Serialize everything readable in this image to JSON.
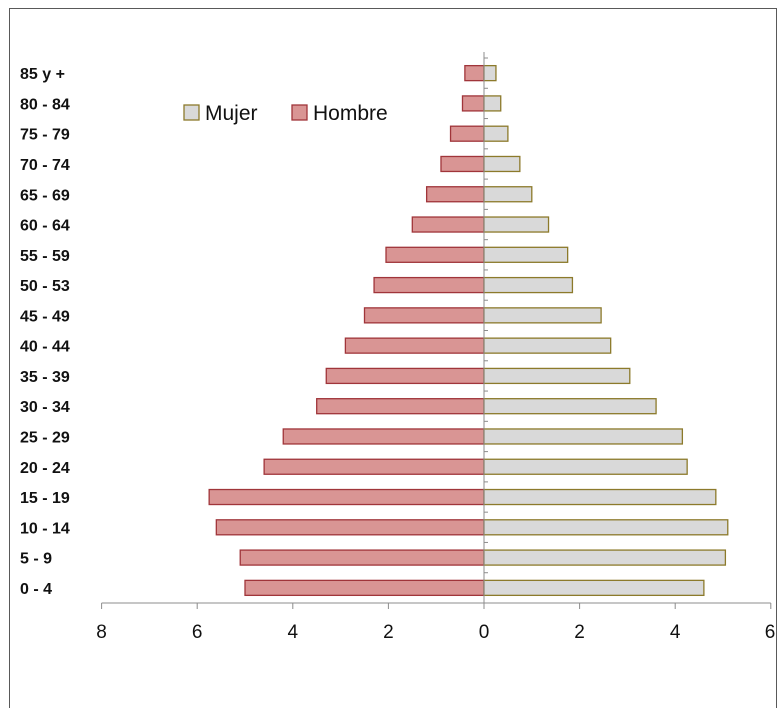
{
  "chart_data": {
    "type": "bar",
    "orientation": "horizontal",
    "subtype": "population-pyramid",
    "categories": [
      "0 - 4",
      "5 - 9",
      "10 - 14",
      "15 - 19",
      "20 - 24",
      "25 - 29",
      "30 - 34",
      "35 - 39",
      "40 - 44",
      "45 - 49",
      "50 - 53",
      "55 - 59",
      "60 - 64",
      "65 - 69",
      "70 - 74",
      "75 - 79",
      "80 - 84",
      "85 y  +"
    ],
    "series": [
      {
        "name": "Mujer",
        "color": "#d9d9d9",
        "stroke": "#8c7a2b",
        "values": [
          4.6,
          5.05,
          5.1,
          4.85,
          4.25,
          4.15,
          3.6,
          3.05,
          2.65,
          2.45,
          1.85,
          1.75,
          1.35,
          1.0,
          0.75,
          0.5,
          0.35,
          0.25
        ]
      },
      {
        "name": "Hombre",
        "color": "#d99594",
        "stroke": "#a0353a",
        "values": [
          5.0,
          5.1,
          5.6,
          5.75,
          4.6,
          4.2,
          3.5,
          3.3,
          2.9,
          2.5,
          2.3,
          2.05,
          1.5,
          1.2,
          0.9,
          0.7,
          0.45,
          0.4
        ]
      }
    ],
    "x_tick_labels": [
      "8",
      "6",
      "4",
      "2",
      "0",
      "2",
      "4",
      "6"
    ],
    "xlim": [
      -8,
      6
    ],
    "legend": "top-left",
    "grid": false
  }
}
